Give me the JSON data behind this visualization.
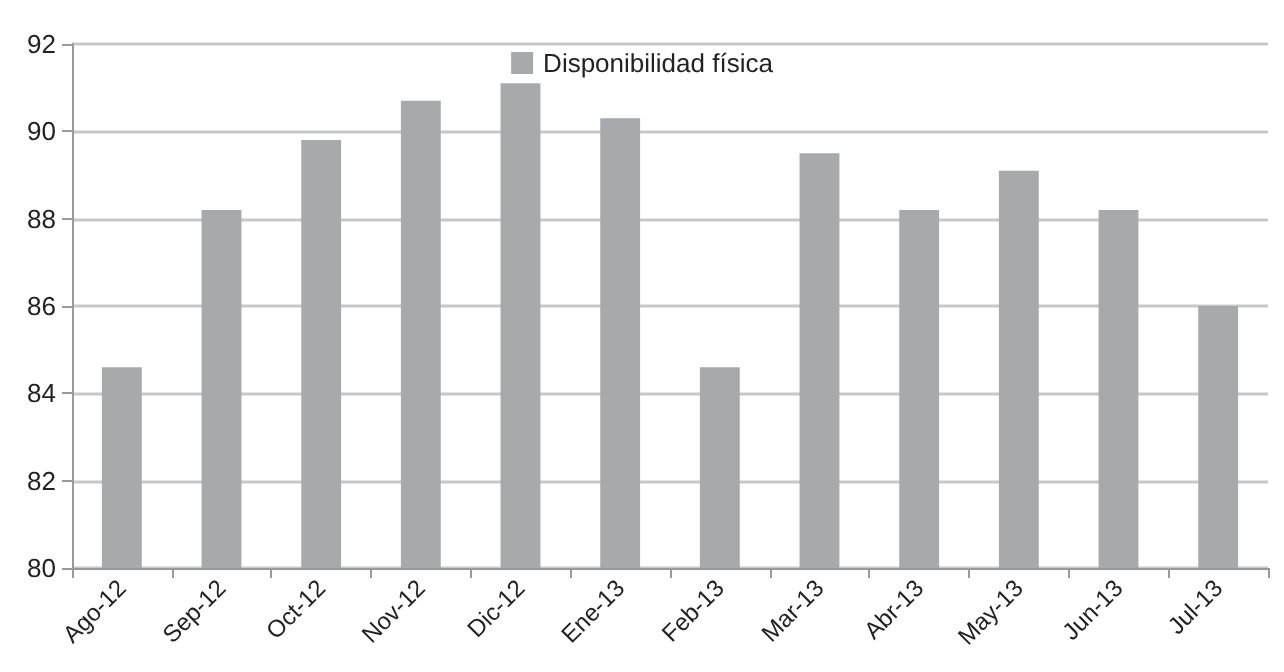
{
  "chart_data": {
    "type": "bar",
    "categories": [
      "Ago-12",
      "Sep-12",
      "Oct-12",
      "Nov-12",
      "Dic-12",
      "Ene-13",
      "Feb-13",
      "Mar-13",
      "Abr-13",
      "May-13",
      "Jun-13",
      "Jul-13"
    ],
    "series": [
      {
        "name": "Disponibilidad física",
        "color": "#a8a9ab",
        "values": [
          84.6,
          88.2,
          89.8,
          90.7,
          91.1,
          90.3,
          84.6,
          89.5,
          88.2,
          89.1,
          88.2,
          86.0
        ]
      }
    ],
    "ylim": [
      80,
      92
    ],
    "yticks": [
      80,
      82,
      84,
      86,
      88,
      90,
      92
    ],
    "grid": "y",
    "legend": "top"
  }
}
